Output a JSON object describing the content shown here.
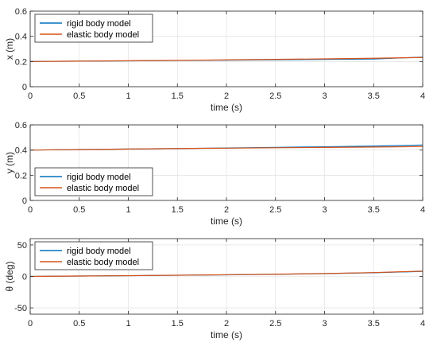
{
  "colors": {
    "rigid": "#0072BD",
    "elastic": "#D95319",
    "axis": "#262626",
    "grid": "#dcdcdc",
    "legend_bg": "#ffffff",
    "legend_border": "#262626"
  },
  "chart_data": [
    {
      "type": "line",
      "xlabel": "time (s)",
      "ylabel": "x (m)",
      "xlim": [
        0,
        4
      ],
      "ylim": [
        0,
        0.6
      ],
      "xticks": [
        0,
        0.5,
        1,
        1.5,
        2,
        2.5,
        3,
        3.5,
        4
      ],
      "xtick_labels": [
        "0",
        "0.5",
        "1",
        "1.5",
        "2",
        "2.5",
        "3",
        "3.5",
        "4"
      ],
      "yticks": [
        0,
        0.2,
        0.4,
        0.6
      ],
      "ytick_labels": [
        "0",
        "0.2",
        "0.4",
        "0.6"
      ],
      "legend_placement": "top-left",
      "series": [
        {
          "name": "rigid body model",
          "color_key": "rigid",
          "x": [
            0,
            0.5,
            1,
            1.5,
            2,
            2.5,
            3,
            3.5,
            4
          ],
          "y": [
            0.2,
            0.203,
            0.205,
            0.208,
            0.211,
            0.214,
            0.217,
            0.22,
            0.235
          ]
        },
        {
          "name": "elastic body model",
          "color_key": "elastic",
          "x": [
            0,
            0.5,
            1,
            1.5,
            2,
            2.5,
            3,
            3.5,
            4
          ],
          "y": [
            0.2,
            0.203,
            0.206,
            0.209,
            0.213,
            0.217,
            0.221,
            0.226,
            0.232
          ]
        }
      ]
    },
    {
      "type": "line",
      "xlabel": "time (s)",
      "ylabel": "y (m)",
      "xlim": [
        0,
        4
      ],
      "ylim": [
        0,
        0.6
      ],
      "xticks": [
        0,
        0.5,
        1,
        1.5,
        2,
        2.5,
        3,
        3.5,
        4
      ],
      "xtick_labels": [
        "0",
        "0.5",
        "1",
        "1.5",
        "2",
        "2.5",
        "3",
        "3.5",
        "4"
      ],
      "yticks": [
        0,
        0.2,
        0.4,
        0.6
      ],
      "ytick_labels": [
        "0",
        "0.2",
        "0.4",
        "0.6"
      ],
      "legend_placement": "bottom-left",
      "series": [
        {
          "name": "rigid body model",
          "color_key": "rigid",
          "x": [
            0,
            0.5,
            1,
            1.5,
            2,
            2.5,
            3,
            3.5,
            4
          ],
          "y": [
            0.4,
            0.404,
            0.408,
            0.412,
            0.416,
            0.421,
            0.426,
            0.432,
            0.44
          ]
        },
        {
          "name": "elastic body model",
          "color_key": "elastic",
          "x": [
            0,
            0.5,
            1,
            1.5,
            2,
            2.5,
            3,
            3.5,
            4
          ],
          "y": [
            0.4,
            0.404,
            0.408,
            0.412,
            0.415,
            0.418,
            0.421,
            0.424,
            0.428
          ]
        }
      ]
    },
    {
      "type": "line",
      "xlabel": "time (s)",
      "ylabel": "θ (deg)",
      "xlim": [
        0,
        4
      ],
      "ylim": [
        -60,
        60
      ],
      "xticks": [
        0,
        0.5,
        1,
        1.5,
        2,
        2.5,
        3,
        3.5,
        4
      ],
      "xtick_labels": [
        "0",
        "0.5",
        "1",
        "1.5",
        "2",
        "2.5",
        "3",
        "3.5",
        "4"
      ],
      "yticks": [
        -50,
        0,
        50
      ],
      "ytick_labels": [
        "-50",
        "0",
        "50"
      ],
      "legend_placement": "top-left",
      "series": [
        {
          "name": "rigid body model",
          "color_key": "rigid",
          "x": [
            0,
            0.5,
            1,
            1.5,
            2,
            2.5,
            3,
            3.5,
            4
          ],
          "y": [
            0,
            0.6,
            1.2,
            1.8,
            2.5,
            3.3,
            4.4,
            5.8,
            8.0
          ]
        },
        {
          "name": "elastic body model",
          "color_key": "elastic",
          "x": [
            0,
            0.5,
            1,
            1.5,
            2,
            2.5,
            3,
            3.5,
            4
          ],
          "y": [
            0,
            0.6,
            1.2,
            1.9,
            2.6,
            3.5,
            4.6,
            6.1,
            8.4
          ]
        }
      ]
    }
  ]
}
